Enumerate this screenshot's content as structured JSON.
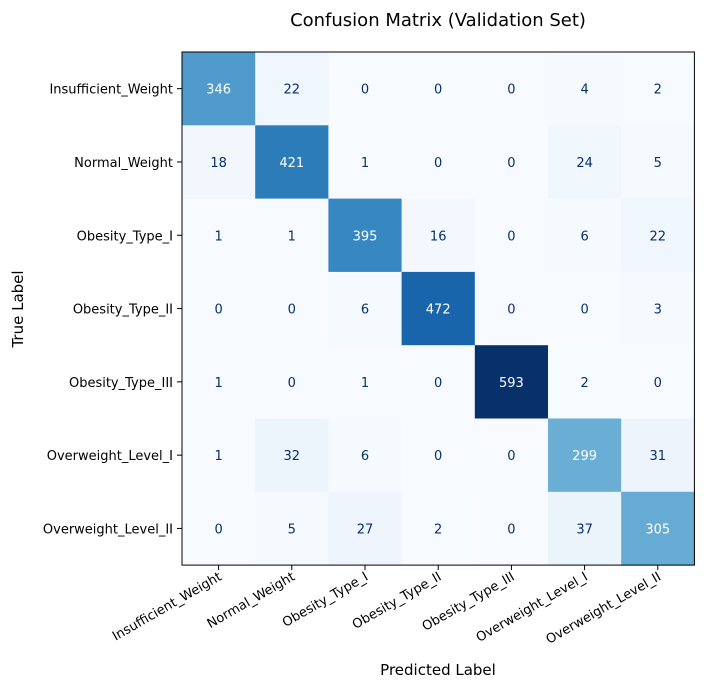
{
  "chart_data": {
    "type": "heatmap",
    "title": "Confusion Matrix (Validation Set)",
    "xlabel": "Predicted Label",
    "ylabel": "True Label",
    "x_categories": [
      "Insufficient_Weight",
      "Normal_Weight",
      "Obesity_Type_I",
      "Obesity_Type_II",
      "Obesity_Type_III",
      "Overweight_Level_I",
      "Overweight_Level_II"
    ],
    "y_categories": [
      "Insufficient_Weight",
      "Normal_Weight",
      "Obesity_Type_I",
      "Obesity_Type_II",
      "Obesity_Type_III",
      "Overweight_Level_I",
      "Overweight_Level_II"
    ],
    "values": [
      [
        346,
        22,
        0,
        0,
        0,
        4,
        2
      ],
      [
        18,
        421,
        1,
        0,
        0,
        24,
        5
      ],
      [
        1,
        1,
        395,
        16,
        0,
        6,
        22
      ],
      [
        0,
        0,
        6,
        472,
        0,
        0,
        3
      ],
      [
        1,
        0,
        1,
        0,
        593,
        2,
        0
      ],
      [
        1,
        32,
        6,
        0,
        0,
        299,
        31
      ],
      [
        0,
        5,
        27,
        2,
        0,
        37,
        305
      ]
    ],
    "colormap": "Blues",
    "value_range": [
      0,
      593
    ],
    "colorbar": false
  }
}
